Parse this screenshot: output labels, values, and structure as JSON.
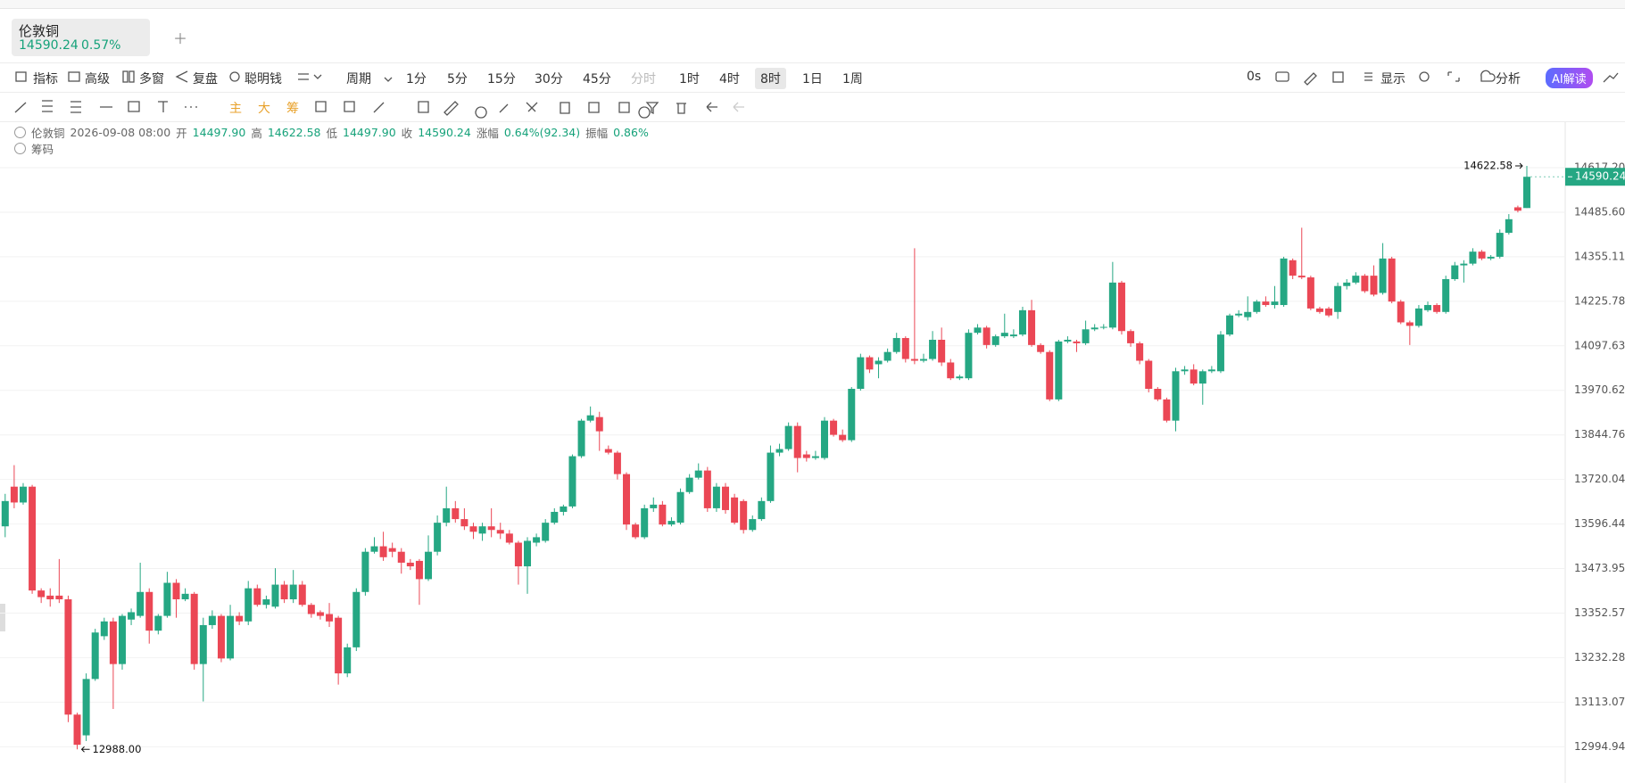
{
  "tab": {
    "name": "伦敦铜",
    "change": "0.57%"
  },
  "toolbar": {
    "left": [
      "指标",
      "高级",
      "多窗",
      "复盘",
      "聪明钱",
      "周期"
    ],
    "periods": [
      "1分",
      "5分",
      "15分",
      "30分",
      "45分",
      "分时",
      "1时",
      "4时",
      "8时",
      "1日",
      "1周"
    ],
    "right": [
      "0s",
      "显示",
      "分析",
      "AI解读"
    ]
  },
  "drawing_tools": [
    "主",
    "大",
    "筹"
  ],
  "info": {
    "name": "伦敦铜",
    "time": "2026-09-08 08:00",
    "open_label": "开",
    "open": "14497.90",
    "high_label": "高",
    "low_label": "低",
    "low": "14497.90",
    "close_label": "收",
    "change_label": "涨幅",
    "change": "0.64%(92.34)",
    "amplitude_label": "振幅",
    "amplitude": "0.86%"
  },
  "indicator_row": "筹码",
  "chart_data": {
    "type": "candlestick",
    "log_scale": true,
    "grid": true,
    "up_color": "#25a783",
    "down_color": "#eb4755",
    "ylim": [
      12899.5,
      14753
    ],
    "yticks": [
      {
        "value": 14617.2,
        "label": "14617.20"
      },
      {
        "value": 14485.6,
        "label": "14485.60"
      },
      14355.11,
      14225.78,
      14097.63,
      13970.62,
      13844.76,
      13720.04,
      13596.44,
      13473.95,
      13352.57,
      13232.28,
      13113.07,
      12994.94
    ],
    "annotations": [
      {
        "value": 12988,
        "label": "12988.00"
      }
    ],
    "open": [
      13590,
      13700,
      13656,
      13700,
      13414,
      13400,
      13400,
      13390,
      13080,
      13025,
      13175,
      13290,
      13330,
      13215,
      13335,
      13345,
      13410,
      13305,
      13345,
      13435,
      13390,
      13405,
      13215,
      13320,
      13345,
      13230,
      13345,
      13330,
      13420,
      13375,
      13370,
      13430,
      13390,
      13430,
      13375,
      13355,
      13350,
      13340,
      13190,
      13260,
      13410,
      13520,
      13535,
      13530,
      13520,
      13490,
      13495,
      13445,
      13520,
      13600,
      13640,
      13610,
      13590,
      13570,
      13590,
      13580,
      13570,
      13545,
      13480,
      13545,
      13550,
      13600,
      13630,
      13645,
      13785,
      13885,
      13895,
      13805,
      13795,
      13735,
      13595,
      13560,
      13640,
      13650,
      13595,
      13600,
      13685,
      13725,
      13745,
      13640,
      13700,
      13670,
      13660,
      13580,
      13610,
      13660,
      13795,
      13805,
      13870,
      13790,
      13780,
      13780,
      13885,
      13845,
      13830,
      13975,
      14065,
      14045,
      14055,
      14080,
      14120,
      14060,
      14055,
      14060,
      14115,
      14050,
      14005,
      14005,
      14135,
      14150,
      14100,
      14125,
      14125,
      14130,
      14200,
      14100,
      14080,
      13945,
      14110,
      14110,
      14105,
      14145,
      14150,
      14150,
      14280,
      14140,
      14105,
      14055,
      13975,
      13945,
      13885,
      14025,
      14030,
      13990,
      14025,
      14025,
      14130,
      14185,
      14180,
      14195,
      14225,
      14215,
      14215,
      14345,
      14300,
      14295,
      14205,
      14205,
      14195,
      14270,
      14280,
      14300,
      14300,
      14250,
      14350,
      14225,
      14165,
      14155,
      14200,
      14215,
      14195,
      14290,
      14330,
      14335,
      14370,
      14350,
      14355,
      14425,
      14500,
      14497.9
    ],
    "high": [
      13680,
      13760,
      13710,
      13705,
      13420,
      13420,
      13500,
      13400,
      13085,
      13190,
      13310,
      13340,
      13340,
      13350,
      13365,
      13490,
      13420,
      13350,
      13465,
      13445,
      13420,
      13410,
      13340,
      13360,
      13350,
      13375,
      13355,
      13440,
      13430,
      13400,
      13475,
      13440,
      13470,
      13440,
      13380,
      13360,
      13380,
      13345,
      13270,
      13420,
      13530,
      13560,
      13575,
      13545,
      13530,
      13500,
      13500,
      13565,
      13620,
      13700,
      13660,
      13640,
      13600,
      13600,
      13640,
      13600,
      13580,
      13550,
      13560,
      13570,
      13610,
      13640,
      13650,
      13790,
      13890,
      13925,
      13910,
      13815,
      13800,
      13740,
      13600,
      13650,
      13670,
      13660,
      13615,
      13695,
      13735,
      13765,
      13755,
      13710,
      13710,
      13680,
      13665,
      13620,
      13670,
      13815,
      13820,
      13880,
      13880,
      13800,
      13800,
      13895,
      13890,
      13860,
      13980,
      14075,
      14070,
      14065,
      14090,
      14135,
      14125,
      14380,
      14075,
      14140,
      14150,
      14060,
      14015,
      14145,
      14160,
      14155,
      14130,
      14190,
      14145,
      14210,
      14230,
      14105,
      14085,
      14115,
      14125,
      14115,
      14170,
      14160,
      14160,
      14340,
      14285,
      14145,
      14110,
      14060,
      13980,
      13950,
      14035,
      14040,
      14045,
      14030,
      14040,
      14140,
      14190,
      14200,
      14240,
      14230,
      14240,
      14270,
      14355,
      14350,
      14440,
      14300,
      14210,
      14210,
      14280,
      14290,
      14310,
      14305,
      14330,
      14395,
      14355,
      14230,
      14170,
      14215,
      14225,
      14220,
      14300,
      14340,
      14345,
      14380,
      14375,
      14360,
      14435,
      14480,
      14505,
      14622.58
    ],
    "low": [
      13560,
      13640,
      13650,
      13405,
      13380,
      13370,
      13380,
      13060,
      12988,
      13010,
      13170,
      13280,
      13095,
      13200,
      13320,
      13340,
      13270,
      13295,
      13340,
      13340,
      13385,
      13200,
      13115,
      13310,
      13220,
      13225,
      13320,
      13320,
      13370,
      13365,
      13365,
      13380,
      13380,
      13370,
      13340,
      13335,
      13315,
      13160,
      13180,
      13250,
      13400,
      13515,
      13495,
      13505,
      13460,
      13470,
      13375,
      13440,
      13510,
      13590,
      13600,
      13580,
      13555,
      13550,
      13560,
      13555,
      13540,
      13430,
      13405,
      13535,
      13545,
      13595,
      13620,
      13640,
      13780,
      13880,
      13800,
      13790,
      13720,
      13580,
      13555,
      13555,
      13630,
      13590,
      13590,
      13595,
      13680,
      13720,
      13630,
      13630,
      13625,
      13595,
      13570,
      13575,
      13605,
      13655,
      13785,
      13800,
      13740,
      13770,
      13775,
      13775,
      13840,
      13825,
      13825,
      13970,
      14020,
      14005,
      14050,
      14075,
      14050,
      14045,
      14050,
      14055,
      14040,
      14000,
      14000,
      14000,
      14130,
      14090,
      14095,
      14120,
      14120,
      14125,
      14095,
      14075,
      13940,
      13940,
      14105,
      14080,
      14100,
      14140,
      14145,
      14145,
      14130,
      14095,
      14045,
      13965,
      13940,
      13880,
      13855,
      14015,
      13985,
      13930,
      14020,
      14020,
      14125,
      14180,
      14170,
      14190,
      14210,
      14205,
      14210,
      14290,
      14290,
      14200,
      14190,
      14180,
      14175,
      14260,
      14275,
      14250,
      14240,
      14245,
      14220,
      14160,
      14100,
      14150,
      14195,
      14190,
      14190,
      14285,
      14280,
      14330,
      14345,
      14345,
      14350,
      14420,
      14485,
      14497.9
    ],
    "close": [
      13660,
      13656,
      13700,
      13414,
      13396,
      13390,
      13390,
      13080,
      13000,
      13175,
      13300,
      13330,
      13215,
      13345,
      13355,
      13410,
      13305,
      13345,
      13435,
      13390,
      13405,
      13215,
      13320,
      13345,
      13230,
      13345,
      13330,
      13420,
      13375,
      13390,
      13430,
      13390,
      13430,
      13375,
      13350,
      13345,
      13330,
      13190,
      13260,
      13410,
      13520,
      13535,
      13505,
      13520,
      13490,
      13480,
      13445,
      13520,
      13600,
      13640,
      13610,
      13590,
      13575,
      13590,
      13580,
      13570,
      13545,
      13480,
      13550,
      13560,
      13600,
      13630,
      13645,
      13785,
      13885,
      13900,
      13855,
      13795,
      13735,
      13595,
      13560,
      13640,
      13650,
      13595,
      13605,
      13685,
      13725,
      13745,
      13640,
      13700,
      13635,
      13600,
      13580,
      13610,
      13660,
      13795,
      13805,
      13870,
      13780,
      13780,
      13785,
      13885,
      13845,
      13830,
      13975,
      14065,
      14030,
      14055,
      14080,
      14120,
      14060,
      14055,
      14060,
      14115,
      14050,
      14005,
      14010,
      14135,
      14150,
      14100,
      14125,
      14135,
      14130,
      14200,
      14100,
      14080,
      13945,
      14110,
      14115,
      14105,
      14145,
      14150,
      14152,
      14280,
      14140,
      14105,
      14055,
      13975,
      13945,
      13885,
      14025,
      14030,
      13990,
      14025,
      14030,
      14130,
      14185,
      14190,
      14195,
      14225,
      14215,
      14225,
      14350,
      14300,
      14295,
      14205,
      14195,
      14185,
      14270,
      14280,
      14300,
      14255,
      14245,
      14350,
      14225,
      14165,
      14155,
      14205,
      14215,
      14195,
      14290,
      14330,
      14335,
      14370,
      14350,
      14355,
      14425,
      14465,
      14490,
      14590.24
    ]
  }
}
